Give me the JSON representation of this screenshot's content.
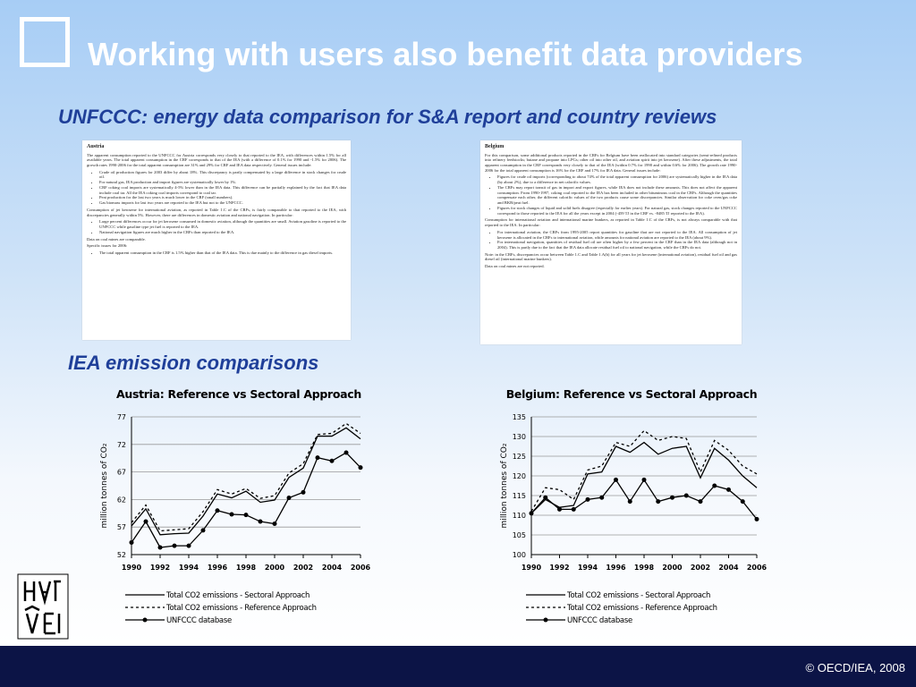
{
  "title": "Working with users also benefit data providers",
  "subtitle": "UNFCCC: energy data comparison for S&A report and country reviews",
  "section_heading": "IEA emission comparisons",
  "footer": "© OECD/IEA, 2008",
  "documents": [
    {
      "heading": "Austria",
      "blocks": [
        "The apparent consumption reported to the UNFCCC for Austria corresponds very closely to that reported to the IEA, with differences within 1.5% for all available years. The total apparent consumption in the CRF corresponds to that of the IEA (with a difference of 0.1% for 1990 and -1.5% for 2006). The growth rates 1990-2006 for the total apparent consumption are 31% and 29% for CRF and IEA data respectively. General issues include:",
        {
          "bullets": [
            "Crude oil production figures for 2003 differ by about 18%. This discrepancy is partly compensated by a large difference in stock changes for crude oil.",
            "For natural gas, IEA production and import figures are systematically lower by 1%.",
            "CRF coking coal imports are systematically 4-5% lower than in the IEA data. This difference can be partially explained by the fact that IEA data include coal tar. All the IEA coking coal imports correspond to coal tar.",
            "Peat production for the last two years is much lower in the CRF (small numbers).",
            "Gas biomass imports for last two years are reported to the IEA but not to the UNFCCC."
          ]
        },
        "Consumption of jet kerosene for international aviation, as reported in Table 1.C of the CRFs, is fairly comparable to that reported to the IEA, with discrepancies generally within 5%. However, there are differences in domestic aviation and national navigation. In particular:",
        {
          "bullets": [
            "Large percent differences occur for jet kerosene consumed in domestic aviation, although the quantities are small. Aviation gasoline is reported to the UNFCCC while gasoline type jet fuel is reported to the IEA.",
            "National navigation figures are much higher in the CRFs than reported to the IEA."
          ]
        },
        "Data on coal mines are comparable.",
        "Specific issues for 2006:",
        {
          "bullets": [
            "The total apparent consumption in the CRF is 1.5% higher than that of the IEA data. This is due mainly to the difference in gas diesel imports."
          ]
        }
      ]
    },
    {
      "heading": "Belgium",
      "blocks": [
        "For this comparison, some additional products reported in the CRFs for Belgium have been reallocated into standard categories (semi-refined products into refinery feedstocks; butane and propane into LPGs; other oil into other oil, and aviation spirit into jet kerosene). After these adjustments, the total apparent consumption in the CRF corresponds very closely to that of the IEA (within 0.7% for 1990 and within 0.6% for 2006). The growth rate 1990-2006 for the total apparent consumption is 16% for the CRF and 17% for IEA data. General issues include:",
        {
          "bullets": [
            "Figures for crude oil imports (corresponding to about 74% of the total apparent consumption for 2006) are systematically higher in the IEA data (by about 2%), due to a difference in net calorific values.",
            "The CRFs may report transit of gas in import and export figures, while IEA does not include these amounts. This does not affect the apparent consumption. From 1990-1997, coking coal reported to the IEA has been included in other bituminous coal in the CRFs. Although the quantities compensate each other, the different calorific values of the two products cause some discrepancies. Similar observation for coke oven/gas coke and BKB/peat fuel.",
            "Figures for stock changes of liquid and solid fuels disagree (especially for earlier years). For natural gas, stock changes reported to the UNFCCC correspond to those reported to the IEA for all the years except in 2004 (-459 TJ in the CRF vs. -8485 TJ reported to the IEA)."
          ]
        },
        "Consumption for international aviation and international marine bunkers, as reported in Table 1.C of the CRFs, is not always comparable with that reported to the IEA. In particular:",
        {
          "bullets": [
            "For international aviation, the CRFs from 1995-2005 report quantities for gasoline that are not reported to the IEA. All consumption of jet kerosene is allocated in the CRFs to international aviation, while amounts for national aviation are reported to the IEA (about 9%).",
            "For international navigation, quantities of residual fuel oil are often higher by a few percent in the CRF than in the IEA data (although not in 2004). This is partly due to the fact that the IEA data allocate residual fuel oil to national navigation, while the CRFs do not."
          ]
        },
        "Note: in the CRFs, discrepancies occur between Table 1.C and Table 1.A(b) for all years for jet kerosene (international aviation), residual fuel oil and gas diesel oil (international marine bunkers).",
        "Data on coal mines are not reported."
      ]
    }
  ],
  "chart_data": [
    {
      "type": "line",
      "title": "Austria: Reference vs Sectoral Approach",
      "y_label": "million tonnes of CO₂",
      "x": [
        1990,
        1991,
        1992,
        1993,
        1994,
        1995,
        1996,
        1997,
        1998,
        1999,
        2000,
        2001,
        2002,
        2003,
        2004,
        2005,
        2006
      ],
      "xlim": [
        1990,
        2006
      ],
      "xticks": [
        1990,
        1992,
        1994,
        1996,
        1998,
        2000,
        2002,
        2004,
        2006
      ],
      "ylim": [
        52,
        77
      ],
      "yticks": [
        52,
        57,
        62,
        67,
        72,
        77
      ],
      "grid": true,
      "series": [
        {
          "name": "Total CO2 emissions - Sectoral Approach",
          "color": "#000000",
          "dash": false,
          "marker": false,
          "values": [
            57.2,
            60.3,
            55.6,
            55.8,
            55.9,
            59.0,
            63.0,
            62.3,
            63.5,
            61.5,
            61.9,
            66.0,
            67.7,
            73.5,
            73.5,
            75.0,
            73.0
          ]
        },
        {
          "name": "Total CO2 emissions - Reference Approach",
          "color": "#000000",
          "dash": true,
          "marker": false,
          "values": [
            57.8,
            61.0,
            56.3,
            56.5,
            56.7,
            59.8,
            63.8,
            63.0,
            64.0,
            62.2,
            62.7,
            66.8,
            68.5,
            73.8,
            74.0,
            75.8,
            74.0
          ]
        },
        {
          "name": "UNFCCC database",
          "color": "#000000",
          "dash": false,
          "marker": true,
          "values": [
            54.2,
            58.0,
            53.3,
            53.6,
            53.6,
            56.4,
            60.0,
            59.3,
            59.2,
            58.0,
            57.6,
            62.3,
            63.3,
            69.6,
            69.0,
            70.5,
            67.8
          ]
        }
      ]
    },
    {
      "type": "line",
      "title": "Belgium: Reference vs Sectoral Approach",
      "y_label": "million tonnes of CO₂",
      "x": [
        1990,
        1991,
        1992,
        1993,
        1994,
        1995,
        1996,
        1997,
        1998,
        1999,
        2000,
        2001,
        2002,
        2003,
        2004,
        2005,
        2006
      ],
      "xlim": [
        1990,
        2006
      ],
      "xticks": [
        1990,
        1992,
        1994,
        1996,
        1998,
        2000,
        2002,
        2004,
        2006
      ],
      "ylim": [
        100,
        135
      ],
      "yticks": [
        100,
        105,
        110,
        115,
        120,
        125,
        130,
        135
      ],
      "grid": true,
      "series": [
        {
          "name": "Total CO2 emissions - Sectoral Approach",
          "color": "#000000",
          "dash": false,
          "marker": false,
          "values": [
            110.5,
            114,
            112,
            112.5,
            120.5,
            121,
            127.5,
            126,
            128.5,
            125.5,
            127,
            127.5,
            119.5,
            127,
            124,
            120,
            117
          ]
        },
        {
          "name": "Total CO2 emissions - Reference Approach",
          "color": "#000000",
          "dash": true,
          "marker": false,
          "values": [
            111,
            117,
            116.5,
            114,
            121.5,
            122.5,
            128.5,
            127.5,
            131.5,
            129,
            130,
            129.5,
            121,
            129,
            126.5,
            122.5,
            120.5
          ]
        },
        {
          "name": "UNFCCC database",
          "color": "#000000",
          "dash": false,
          "marker": true,
          "values": [
            110.5,
            114.5,
            111.5,
            111.5,
            114,
            114.5,
            119,
            113.5,
            119,
            113.5,
            114.5,
            115,
            113.5,
            117.5,
            116.5,
            113.5,
            109
          ]
        }
      ]
    }
  ]
}
